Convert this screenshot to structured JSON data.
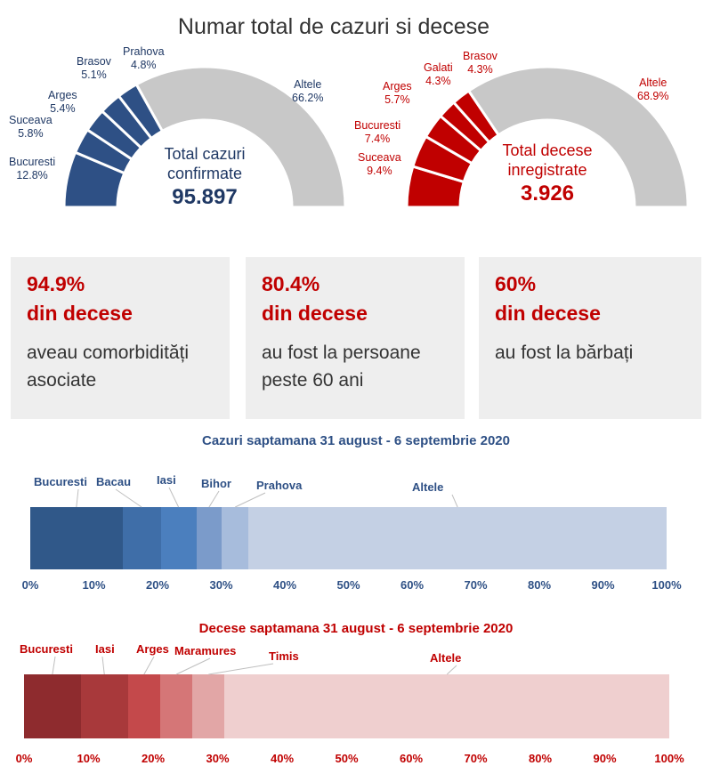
{
  "title": "Numar total de cazuri si decese",
  "colors": {
    "blue_dark": "#2e5085",
    "blue_text": "#1f3864",
    "red": "#c00000",
    "gray_slice": "#c8c8c8",
    "card_bg": "#eeeeee"
  },
  "cases_donut": {
    "center_label_1": "Total cazuri",
    "center_label_2": "confirmate",
    "total": "95.897",
    "slices": [
      {
        "name": "Bucuresti",
        "value": 12.8,
        "label": "12.8%"
      },
      {
        "name": "Suceava",
        "value": 5.8,
        "label": "5.8%"
      },
      {
        "name": "Arges",
        "value": 5.4,
        "label": "5.4%"
      },
      {
        "name": "Brasov",
        "value": 5.1,
        "label": "5.1%"
      },
      {
        "name": "Prahova",
        "value": 4.8,
        "label": "4.8%"
      },
      {
        "name": "Altele",
        "value": 66.2,
        "label": "66.2%"
      }
    ]
  },
  "deaths_donut": {
    "center_label_1": "Total decese",
    "center_label_2": "inregistrate",
    "total": "3.926",
    "slices": [
      {
        "name": "Suceava",
        "value": 9.4,
        "label": "9.4%"
      },
      {
        "name": "Bucuresti",
        "value": 7.4,
        "label": "7.4%"
      },
      {
        "name": "Arges",
        "value": 5.7,
        "label": "5.7%"
      },
      {
        "name": "Galati",
        "value": 4.3,
        "label": "4.3%"
      },
      {
        "name": "Brasov",
        "value": 4.3,
        "label": "4.3%"
      },
      {
        "name": "Altele",
        "value": 68.9,
        "label": "68.9%"
      }
    ]
  },
  "cards": [
    {
      "pct": "94.9%",
      "sub": "din decese",
      "desc_1": "aveau comorbidități",
      "desc_2": "asociate"
    },
    {
      "pct": "80.4%",
      "sub": "din decese",
      "desc_1": "au fost la persoane",
      "desc_2": "peste 60 ani"
    },
    {
      "pct": "60%",
      "sub": "din decese",
      "desc_1": "au fost la bărbați",
      "desc_2": ""
    }
  ],
  "chart_data": [
    {
      "type": "bar",
      "title": "Cazuri saptamana 31 august - 6 septembrie 2020",
      "stacked": true,
      "xlim": [
        0,
        100
      ],
      "tick_labels": [
        "0%",
        "10%",
        "20%",
        "30%",
        "40%",
        "50%",
        "60%",
        "70%",
        "80%",
        "90%",
        "100%"
      ],
      "series": [
        {
          "name": "Bucuresti",
          "value": 14.5,
          "color": "#305889"
        },
        {
          "name": "Bacau",
          "value": 6.0,
          "color": "#3f6ea8"
        },
        {
          "name": "Iasi",
          "value": 5.6,
          "color": "#4b7fbe"
        },
        {
          "name": "Bihor",
          "value": 4.0,
          "color": "#7b9bca"
        },
        {
          "name": "Prahova",
          "value": 4.2,
          "color": "#a7bcdc"
        },
        {
          "name": "Altele",
          "value": 65.7,
          "color": "#c4d0e4"
        }
      ]
    },
    {
      "type": "bar",
      "title": "Decese saptamana 31 august - 6 septembrie 2020",
      "stacked": true,
      "xlim": [
        0,
        100
      ],
      "tick_labels": [
        "0%",
        "10%",
        "20%",
        "30%",
        "40%",
        "50%",
        "60%",
        "70%",
        "80%",
        "90%",
        "100%"
      ],
      "series": [
        {
          "name": "Bucuresti",
          "value": 8.8,
          "color": "#8e2b2e"
        },
        {
          "name": "Iasi",
          "value": 7.3,
          "color": "#a8393b"
        },
        {
          "name": "Arges",
          "value": 5.0,
          "color": "#c4494b"
        },
        {
          "name": "Maramures",
          "value": 5.0,
          "color": "#d57677"
        },
        {
          "name": "Timis",
          "value": 5.0,
          "color": "#e2a6a6"
        },
        {
          "name": "Altele",
          "value": 68.9,
          "color": "#efcfcf"
        }
      ]
    }
  ]
}
